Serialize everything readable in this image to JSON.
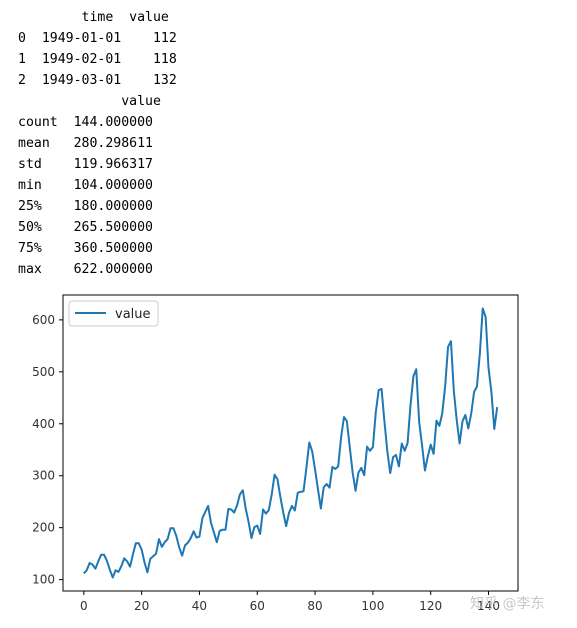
{
  "output": {
    "head_table": {
      "header_line": "        time  value",
      "rows": [
        "0  1949-01-01    112",
        "1  1949-02-01    118",
        "2  1949-03-01    132"
      ]
    },
    "describe_table": {
      "header_line": "             value",
      "rows": [
        "count  144.000000",
        "mean   280.298611",
        "std    119.966317",
        "min    104.000000",
        "25%    180.000000",
        "50%    265.500000",
        "75%    360.500000",
        "max    622.000000"
      ]
    }
  },
  "chart_data": {
    "type": "line",
    "xlim": [
      -7.2,
      150.2
    ],
    "ylim": [
      78.1,
      647.9
    ],
    "x_ticks": [
      0,
      20,
      40,
      60,
      80,
      100,
      120,
      140
    ],
    "y_ticks": [
      100,
      200,
      300,
      400,
      500,
      600
    ],
    "legend_position": "top-left",
    "grid": false,
    "series": [
      {
        "name": "value",
        "color": "#1f77b4",
        "values": [
          112,
          118,
          132,
          129,
          121,
          135,
          148,
          148,
          136,
          119,
          104,
          118,
          115,
          126,
          141,
          135,
          125,
          149,
          170,
          170,
          158,
          133,
          114,
          140,
          145,
          150,
          178,
          163,
          172,
          178,
          199,
          199,
          184,
          162,
          146,
          166,
          171,
          180,
          193,
          181,
          183,
          218,
          230,
          242,
          209,
          191,
          172,
          194,
          196,
          196,
          236,
          235,
          229,
          243,
          264,
          272,
          237,
          211,
          180,
          201,
          204,
          188,
          235,
          227,
          234,
          264,
          302,
          293,
          259,
          229,
          203,
          229,
          242,
          233,
          267,
          269,
          270,
          315,
          364,
          347,
          312,
          274,
          237,
          278,
          284,
          277,
          317,
          313,
          318,
          374,
          413,
          405,
          355,
          306,
          271,
          306,
          315,
          301,
          356,
          348,
          355,
          422,
          465,
          467,
          404,
          347,
          305,
          336,
          340,
          318,
          362,
          348,
          363,
          435,
          491,
          505,
          404,
          359,
          310,
          337,
          360,
          342,
          406,
          396,
          420,
          472,
          548,
          559,
          463,
          407,
          362,
          405,
          417,
          391,
          419,
          461,
          472,
          535,
          622,
          606,
          508,
          461,
          390,
          432
        ]
      }
    ]
  },
  "watermark": "知乎 @李东"
}
